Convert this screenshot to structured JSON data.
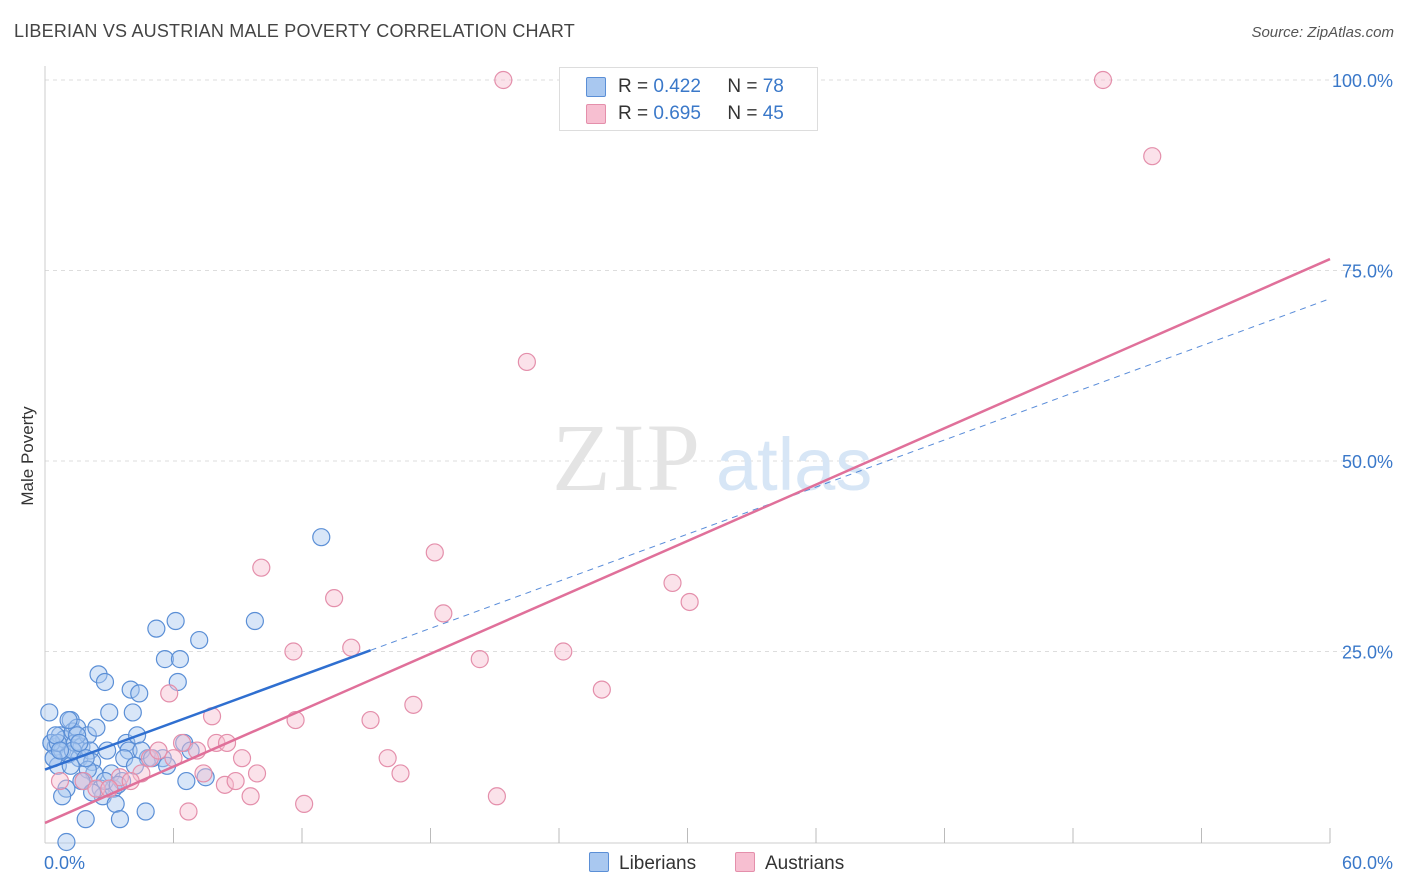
{
  "title": "LIBERIAN VS AUSTRIAN MALE POVERTY CORRELATION CHART",
  "source": "Source: ZipAtlas.com",
  "watermark": {
    "zip": "ZIP",
    "atlas": "atlas"
  },
  "legend": {
    "r_label": "R =",
    "n_label": "N =",
    "series": [
      {
        "r": "0.422",
        "n": "78"
      },
      {
        "r": "0.695",
        "n": "45"
      }
    ]
  },
  "bottom_legend": [
    "Liberians",
    "Austrians"
  ],
  "colors": {
    "liberians_fill": "#a9c8f0",
    "liberians_stroke": "#5b8fd6",
    "liberians_line": "#2f6fd0",
    "austrians_fill": "#f7bfd1",
    "austrians_stroke": "#e48fab",
    "austrians_line": "#e0709a",
    "tick_label": "#3a78c9",
    "grid": "#dddddd"
  },
  "chart_data": {
    "type": "scatter",
    "ylabel": "Male Poverty",
    "xlim": [
      0,
      60
    ],
    "ylim": [
      0,
      100
    ],
    "x_tick_labels": [
      "0.0%",
      "60.0%"
    ],
    "y_ticks": [
      {
        "value": 25,
        "label": "25.0%"
      },
      {
        "value": 50,
        "label": "50.0%"
      },
      {
        "value": 75,
        "label": "75.0%"
      },
      {
        "value": 100,
        "label": "100.0%"
      }
    ],
    "grid": true,
    "legend_position": "top-center",
    "series": [
      {
        "name": "Liberians",
        "points": [
          [
            0.2,
            17
          ],
          [
            0.3,
            13
          ],
          [
            0.4,
            11
          ],
          [
            0.5,
            12.5
          ],
          [
            0.6,
            10
          ],
          [
            0.7,
            14
          ],
          [
            0.8,
            12
          ],
          [
            0.9,
            13.5
          ],
          [
            1.0,
            7
          ],
          [
            1.1,
            11.5
          ],
          [
            1.2,
            16
          ],
          [
            1.3,
            14.5
          ],
          [
            1.4,
            13
          ],
          [
            1.5,
            15
          ],
          [
            1.6,
            11
          ],
          [
            1.7,
            12.5
          ],
          [
            1.8,
            8
          ],
          [
            1.9,
            3
          ],
          [
            2.0,
            14
          ],
          [
            2.1,
            12
          ],
          [
            2.2,
            10.5
          ],
          [
            2.3,
            9
          ],
          [
            2.4,
            15
          ],
          [
            2.5,
            22
          ],
          [
            2.6,
            7
          ],
          [
            2.7,
            6
          ],
          [
            2.8,
            21
          ],
          [
            3.0,
            17
          ],
          [
            3.1,
            9
          ],
          [
            3.2,
            7
          ],
          [
            3.3,
            5
          ],
          [
            3.5,
            3
          ],
          [
            3.6,
            8
          ],
          [
            3.8,
            13
          ],
          [
            3.9,
            12
          ],
          [
            4.0,
            20
          ],
          [
            4.1,
            17
          ],
          [
            4.3,
            14
          ],
          [
            4.4,
            19.5
          ],
          [
            4.7,
            4
          ],
          [
            4.8,
            11
          ],
          [
            5.2,
            28
          ],
          [
            5.5,
            11
          ],
          [
            5.6,
            24
          ],
          [
            5.7,
            10
          ],
          [
            6.1,
            29
          ],
          [
            6.2,
            21
          ],
          [
            6.3,
            24
          ],
          [
            6.5,
            13
          ],
          [
            6.6,
            8
          ],
          [
            7.2,
            26.5
          ],
          [
            7.5,
            8.5
          ],
          [
            9.8,
            29
          ],
          [
            12.9,
            40
          ],
          [
            0.3,
            13
          ],
          [
            0.8,
            6
          ],
          [
            1.0,
            0
          ],
          [
            1.2,
            10
          ],
          [
            1.5,
            14
          ],
          [
            2.0,
            9.5
          ],
          [
            0.4,
            11
          ],
          [
            0.6,
            13
          ],
          [
            1.3,
            12
          ],
          [
            1.7,
            8
          ],
          [
            2.2,
            6.5
          ],
          [
            2.8,
            8
          ],
          [
            3.4,
            7.5
          ],
          [
            4.5,
            12
          ],
          [
            5.0,
            11
          ],
          [
            0.5,
            14
          ],
          [
            1.1,
            16
          ],
          [
            1.6,
            13
          ],
          [
            2.9,
            12
          ],
          [
            3.7,
            11
          ],
          [
            4.2,
            10
          ],
          [
            6.8,
            12
          ],
          [
            0.7,
            12
          ],
          [
            1.9,
            11
          ]
        ]
      },
      {
        "name": "Austrians",
        "points": [
          [
            0.7,
            8
          ],
          [
            1.8,
            8
          ],
          [
            2.4,
            7
          ],
          [
            3.5,
            8.5
          ],
          [
            4.5,
            9
          ],
          [
            4.9,
            11
          ],
          [
            5.3,
            12
          ],
          [
            5.8,
            19.5
          ],
          [
            6.4,
            13
          ],
          [
            6.7,
            4
          ],
          [
            7.4,
            9
          ],
          [
            7.8,
            16.5
          ],
          [
            8.0,
            13
          ],
          [
            8.4,
            7.5
          ],
          [
            8.9,
            8
          ],
          [
            9.2,
            11
          ],
          [
            9.6,
            6
          ],
          [
            9.9,
            9
          ],
          [
            10.1,
            36
          ],
          [
            11.6,
            25
          ],
          [
            11.7,
            16
          ],
          [
            12.1,
            5
          ],
          [
            13.5,
            32
          ],
          [
            14.3,
            25.5
          ],
          [
            15.2,
            16
          ],
          [
            16.0,
            11
          ],
          [
            16.6,
            9
          ],
          [
            17.2,
            18
          ],
          [
            18.2,
            38
          ],
          [
            18.6,
            30
          ],
          [
            20.3,
            24
          ],
          [
            21.1,
            6
          ],
          [
            22.5,
            63
          ],
          [
            24.2,
            25
          ],
          [
            26.0,
            20
          ],
          [
            29.3,
            34
          ],
          [
            30.1,
            31.5
          ],
          [
            21.4,
            100
          ],
          [
            49.4,
            100
          ],
          [
            51.7,
            90
          ],
          [
            3.0,
            7
          ],
          [
            4.0,
            8
          ],
          [
            6.0,
            11
          ],
          [
            7.1,
            12
          ],
          [
            8.5,
            13
          ]
        ]
      }
    ],
    "trend_lines": [
      {
        "series": "Liberians",
        "solid_x": [
          0,
          15.2
        ],
        "dashed_x": [
          15.2,
          60
        ],
        "y_at_x0": 9.5,
        "slope": 1.03
      },
      {
        "series": "Austrians",
        "x": [
          0,
          60
        ],
        "y": [
          2.5,
          76.5
        ]
      }
    ]
  }
}
